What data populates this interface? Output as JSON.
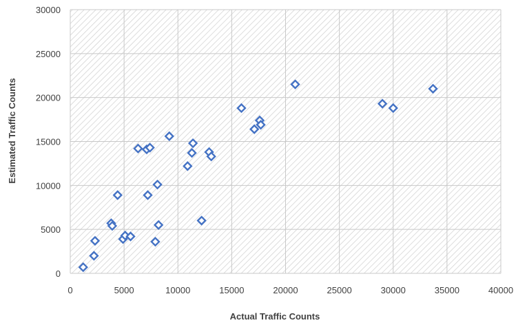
{
  "chart_data": {
    "type": "scatter",
    "title": "",
    "xlabel": "Actual Traffic Counts",
    "ylabel": "Estimated Traffic Counts",
    "xlim": [
      0,
      40000
    ],
    "ylim": [
      0,
      30000
    ],
    "x_ticks": [
      "0",
      "5000",
      "10000",
      "15000",
      "20000",
      "25000",
      "30000",
      "35000",
      "40000"
    ],
    "y_ticks": [
      "0",
      "5000",
      "10000",
      "15000",
      "20000",
      "25000",
      "30000"
    ],
    "grid": true,
    "plot_background": "hatched",
    "marker": "diamond-open",
    "series": [
      {
        "color": "#4472c4",
        "points": [
          [
            1200,
            700
          ],
          [
            2200,
            2000
          ],
          [
            2300,
            3700
          ],
          [
            3800,
            5700
          ],
          [
            3900,
            5400
          ],
          [
            4400,
            8900
          ],
          [
            4900,
            3900
          ],
          [
            5100,
            4300
          ],
          [
            5600,
            4200
          ],
          [
            6300,
            14200
          ],
          [
            7100,
            14100
          ],
          [
            7200,
            8900
          ],
          [
            7400,
            14300
          ],
          [
            7900,
            3600
          ],
          [
            8100,
            10100
          ],
          [
            8200,
            5500
          ],
          [
            9200,
            15600
          ],
          [
            10900,
            12200
          ],
          [
            11300,
            13700
          ],
          [
            11400,
            14800
          ],
          [
            12200,
            6000
          ],
          [
            12900,
            13800
          ],
          [
            13100,
            13300
          ],
          [
            15900,
            18800
          ],
          [
            17100,
            16400
          ],
          [
            17600,
            17400
          ],
          [
            17700,
            16900
          ],
          [
            20900,
            21500
          ],
          [
            29000,
            19300
          ],
          [
            30000,
            18800
          ],
          [
            33700,
            21000
          ]
        ]
      }
    ]
  }
}
